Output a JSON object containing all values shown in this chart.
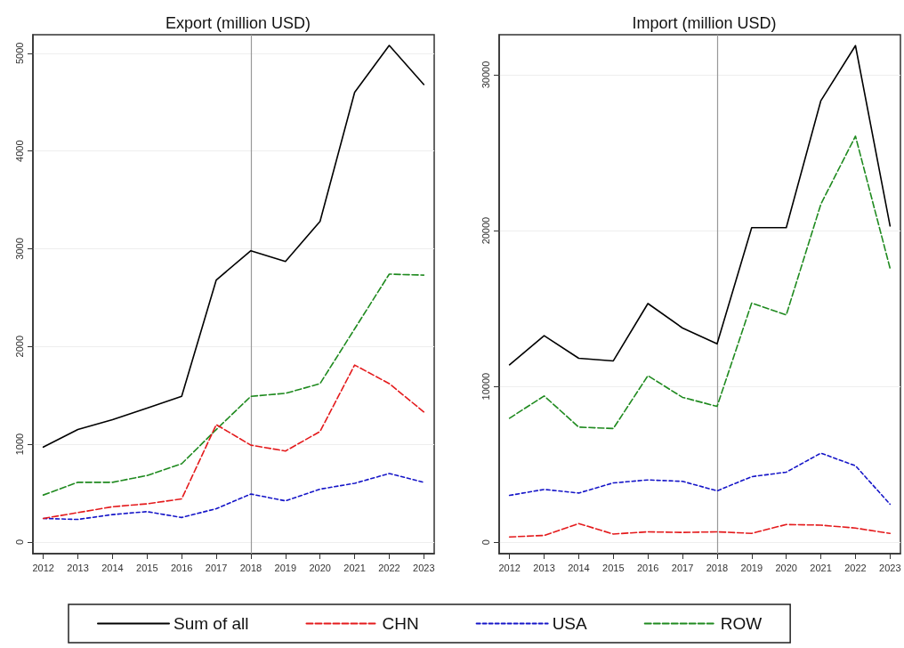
{
  "chart_data": [
    {
      "type": "line",
      "title": "Export (million USD)",
      "x": [
        2012,
        2013,
        2014,
        2015,
        2016,
        2017,
        2018,
        2019,
        2020,
        2021,
        2022,
        2023
      ],
      "xlim": [
        2011.7,
        2023.3
      ],
      "xticks": [
        2012,
        2013,
        2014,
        2015,
        2016,
        2017,
        2018,
        2019,
        2020,
        2021,
        2022,
        2023
      ],
      "ylim": [
        -120,
        5190
      ],
      "yticks": [
        0,
        1000,
        2000,
        3000,
        4000,
        5000
      ],
      "grid": "y",
      "legend": "bottom",
      "marker": "none",
      "ref_lines": [
        {
          "axis": "x",
          "value": 2018,
          "color": "#999999",
          "line_style": "solid"
        }
      ],
      "series": [
        {
          "name": "Sum of all",
          "color": "#000000",
          "line_style": "solid",
          "values": [
            970,
            1150,
            1250,
            1370,
            1490,
            2680,
            2980,
            2870,
            3280,
            4600,
            5080,
            4680
          ]
        },
        {
          "name": "CHN",
          "color": "#e41a1c",
          "line_style": "dashed",
          "values": [
            240,
            300,
            360,
            390,
            440,
            1200,
            990,
            930,
            1130,
            1810,
            1620,
            1330
          ]
        },
        {
          "name": "USA",
          "color": "#1515c8",
          "line_style": "dotted",
          "values": [
            240,
            230,
            280,
            310,
            250,
            340,
            490,
            420,
            540,
            600,
            700,
            610
          ]
        },
        {
          "name": "ROW",
          "color": "#1f8a1f",
          "line_style": "dashed",
          "values": [
            480,
            610,
            610,
            680,
            800,
            1150,
            1490,
            1520,
            1620,
            2180,
            2740,
            2730
          ]
        }
      ]
    },
    {
      "type": "line",
      "title": "Import (million USD)",
      "x": [
        2012,
        2013,
        2014,
        2015,
        2016,
        2017,
        2018,
        2019,
        2020,
        2021,
        2022,
        2023
      ],
      "xlim": [
        2011.7,
        2023.3
      ],
      "xticks": [
        2012,
        2013,
        2014,
        2015,
        2016,
        2017,
        2018,
        2019,
        2020,
        2021,
        2022,
        2023
      ],
      "ylim": [
        -730,
        32570
      ],
      "yticks": [
        0,
        10000,
        20000,
        30000
      ],
      "grid": "y",
      "marker": "none",
      "ref_lines": [
        {
          "axis": "x",
          "value": 2018,
          "color": "#999999",
          "line_style": "solid"
        }
      ],
      "series": [
        {
          "color": "#000000",
          "line_style": "solid",
          "values": [
            11390,
            13260,
            11810,
            11640,
            15320,
            13750,
            12730,
            20190,
            20190,
            28340,
            31870,
            20300
          ]
        },
        {
          "color": "#e41a1c",
          "line_style": "dashed",
          "values": [
            340,
            440,
            1200,
            530,
            670,
            630,
            670,
            570,
            1140,
            1100,
            910,
            570
          ]
        },
        {
          "color": "#1515c8",
          "line_style": "dotted",
          "values": [
            3010,
            3390,
            3160,
            3810,
            4000,
            3910,
            3300,
            4210,
            4500,
            5720,
            4910,
            2440
          ]
        },
        {
          "color": "#1f8a1f",
          "line_style": "dashed",
          "values": [
            7960,
            9390,
            7390,
            7300,
            10690,
            9300,
            8720,
            15350,
            14590,
            21700,
            26060,
            17580
          ]
        }
      ]
    }
  ]
}
